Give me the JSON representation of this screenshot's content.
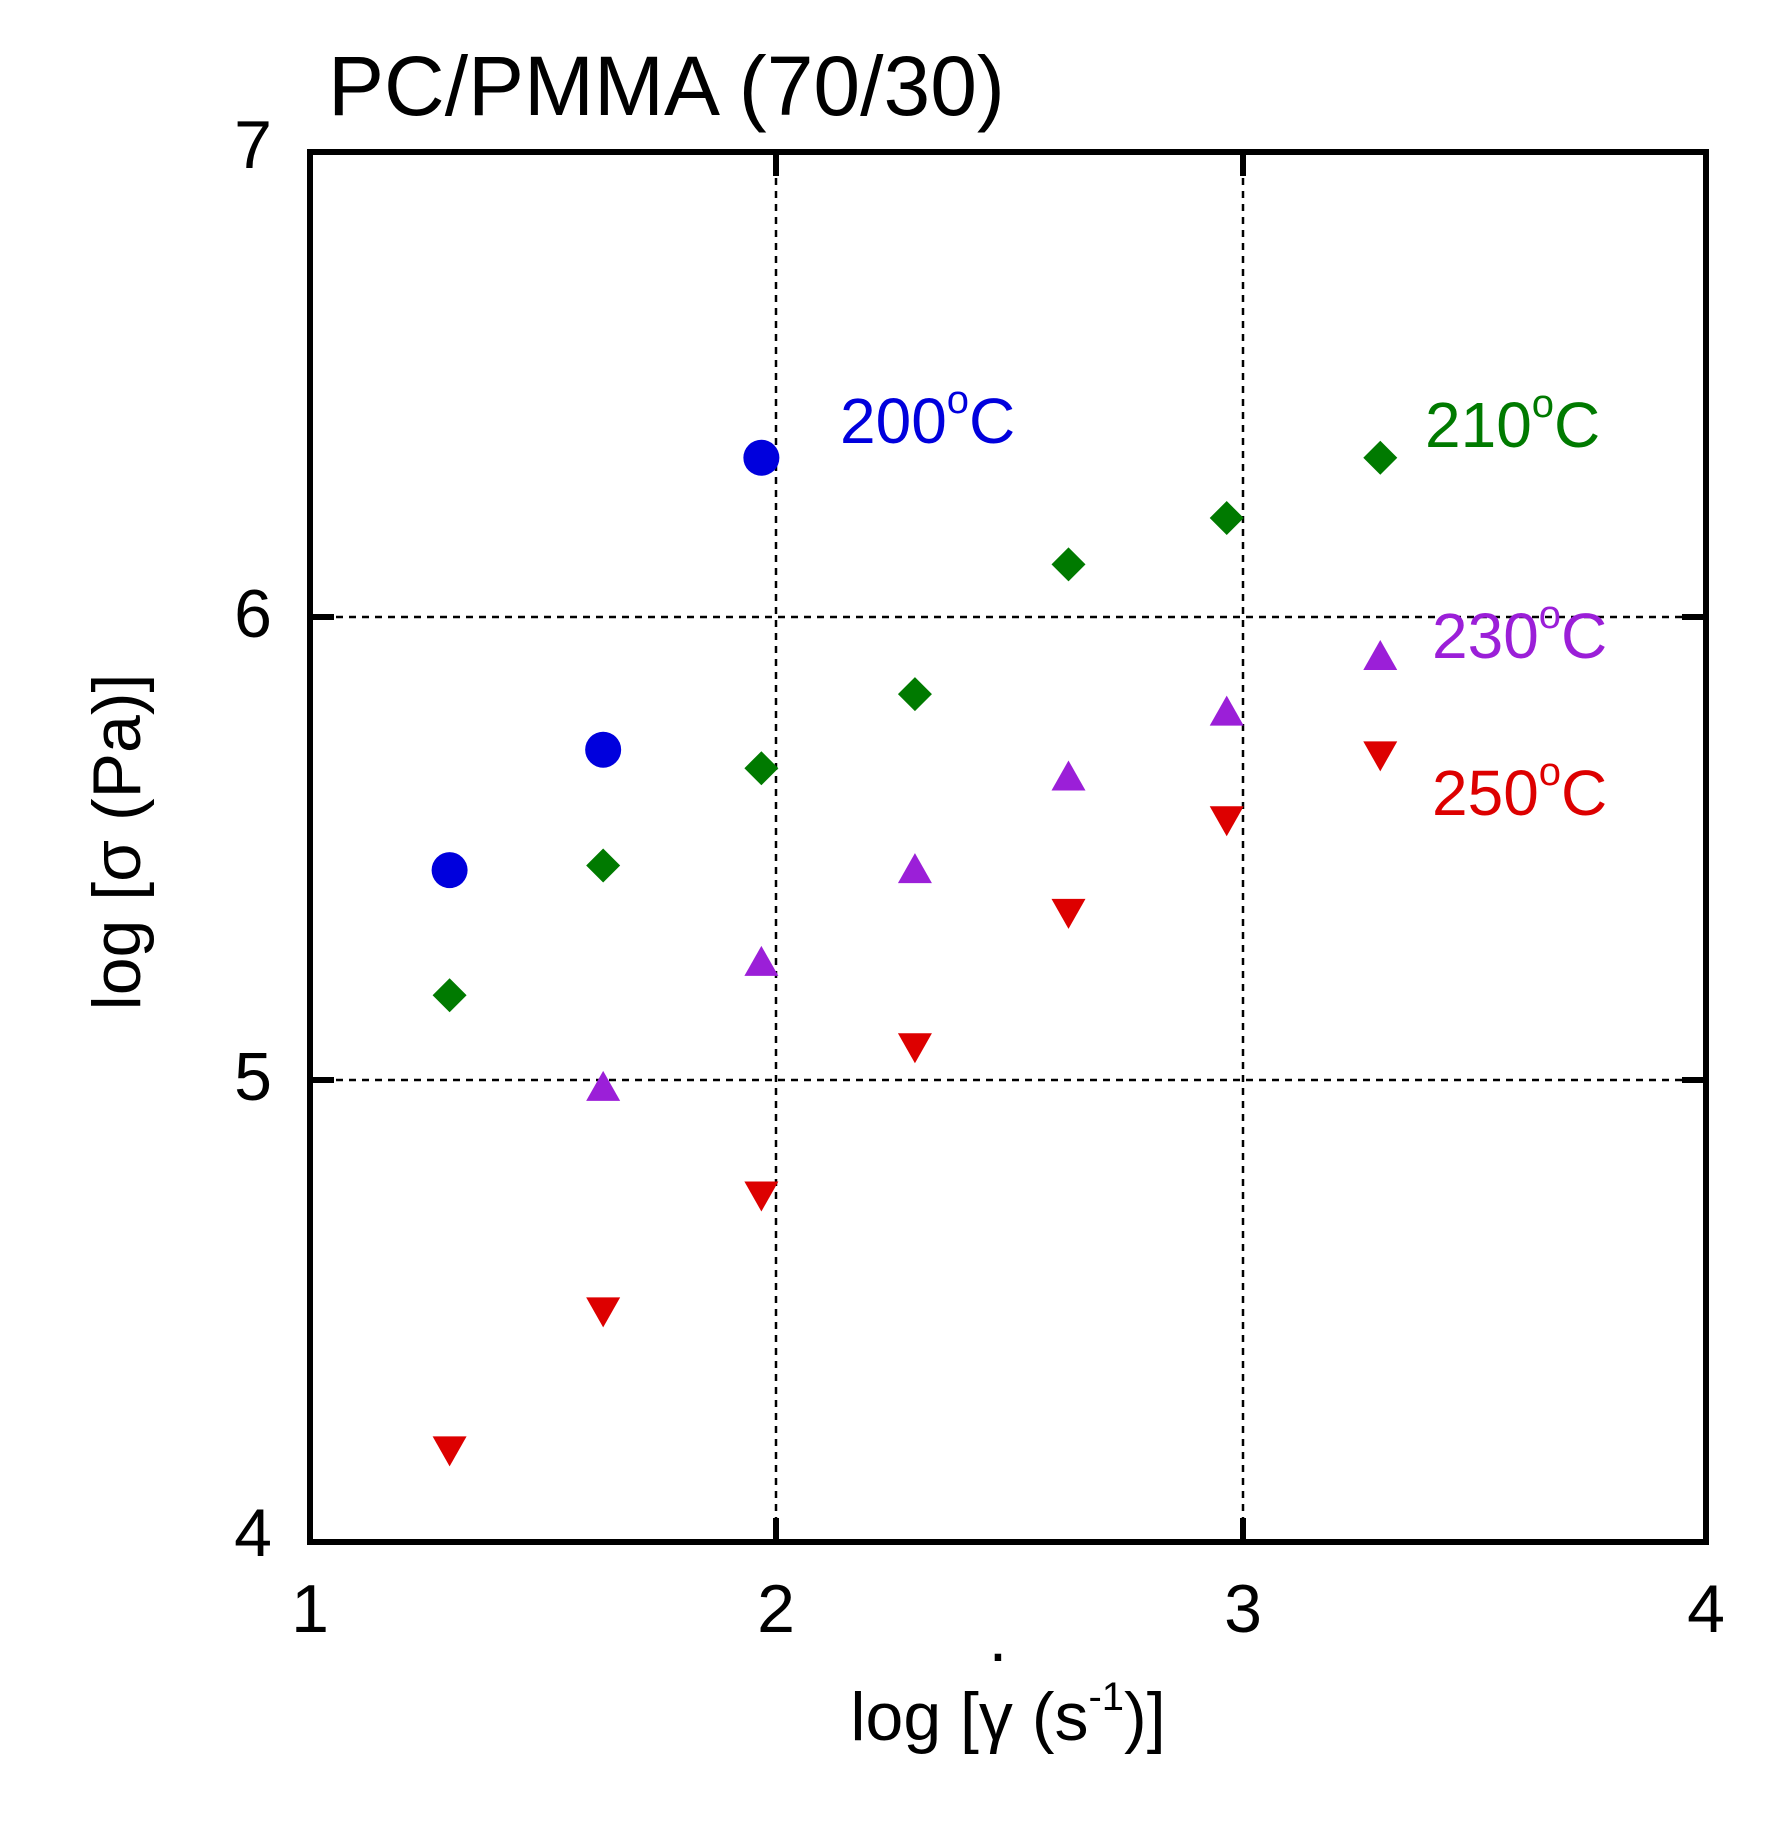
{
  "chart_data": {
    "type": "scatter",
    "title": "PC/PMMA (70/30)",
    "xlabel": {
      "prefix": "log [",
      "symbol": "γ",
      "dot": "·",
      "units_open": " (s",
      "units_exp": "-1",
      "suffix": ")]"
    },
    "ylabel": {
      "prefix": "log [",
      "symbol": "σ",
      "suffix": " (Pa)]"
    },
    "xlim": [
      1,
      4
    ],
    "ylim": [
      4,
      7
    ],
    "xticks": [
      "1",
      "2",
      "3",
      "4"
    ],
    "yticks": [
      "4",
      "5",
      "6",
      "7"
    ],
    "grid": "dashed at x=2, x=3, y=5, y=6",
    "series": [
      {
        "name": "200°C",
        "label_main": "200",
        "label_deg": "o",
        "label_unit": "C",
        "marker": "circle",
        "color": "#0000dd",
        "x": [
          1.3,
          1.63,
          1.97
        ],
        "y": [
          5.45,
          5.71,
          6.34
        ]
      },
      {
        "name": "210°C",
        "label_main": "210",
        "label_deg": "o",
        "label_unit": "C",
        "marker": "diamond",
        "color": "#007a00",
        "x": [
          1.3,
          1.63,
          1.97,
          2.3,
          2.63,
          2.97,
          3.3
        ],
        "y": [
          5.18,
          5.46,
          5.67,
          5.83,
          6.11,
          6.21,
          6.34
        ]
      },
      {
        "name": "230°C",
        "label_main": "230",
        "label_deg": "o",
        "label_unit": "C",
        "marker": "triangle-up",
        "color": "#9b1fd8",
        "x": [
          1.63,
          1.97,
          2.3,
          2.63,
          2.97,
          3.3
        ],
        "y": [
          4.98,
          5.25,
          5.45,
          5.65,
          5.79,
          5.91
        ]
      },
      {
        "name": "250°C",
        "label_main": "250",
        "label_deg": "o",
        "label_unit": "C",
        "marker": "triangle-down",
        "color": "#dd0000",
        "x": [
          1.3,
          1.63,
          1.97,
          2.3,
          2.63,
          2.97,
          3.3
        ],
        "y": [
          4.2,
          4.5,
          4.75,
          5.07,
          5.36,
          5.56,
          5.7
        ]
      }
    ]
  }
}
